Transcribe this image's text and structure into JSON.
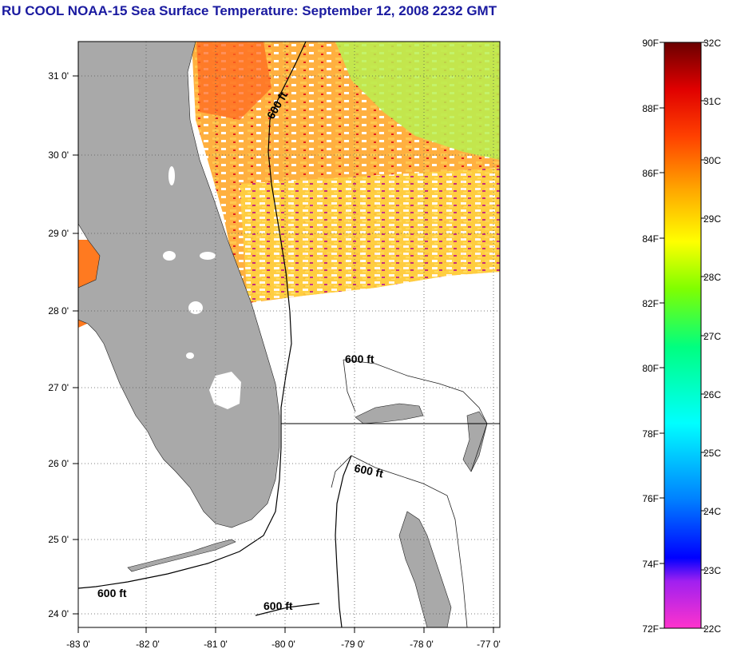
{
  "title": "RU COOL  NOAA-15  Sea Surface Temperature:  September 12, 2008 2232 GMT",
  "map": {
    "lon_ticks": [
      "-83 0'",
      "-82 0'",
      "-81 0'",
      "-80 0'",
      "-79 0'",
      "-78 0'",
      "-77 0'"
    ],
    "lat_ticks": [
      "31 0'",
      "30 0'",
      "29 0'",
      "28 0'",
      "27 0'",
      "26 0'",
      "25 0'",
      "24 0'"
    ],
    "contour_labels": [
      "600 ft",
      "600 ft",
      "600 ft",
      "600 ft",
      "600 ft"
    ],
    "land_color": "#a9a9a9",
    "grid": "dotted"
  },
  "colorbar": {
    "f_labels": [
      "90F",
      "88F",
      "86F",
      "84F",
      "82F",
      "80F",
      "78F",
      "76F",
      "74F",
      "72F"
    ],
    "c_labels": [
      "32C",
      "31C",
      "30C",
      "29C",
      "28C",
      "27C",
      "26C",
      "25C",
      "24C",
      "23C",
      "22C"
    ],
    "range_f": [
      72,
      90
    ],
    "range_c": [
      22,
      32
    ]
  }
}
